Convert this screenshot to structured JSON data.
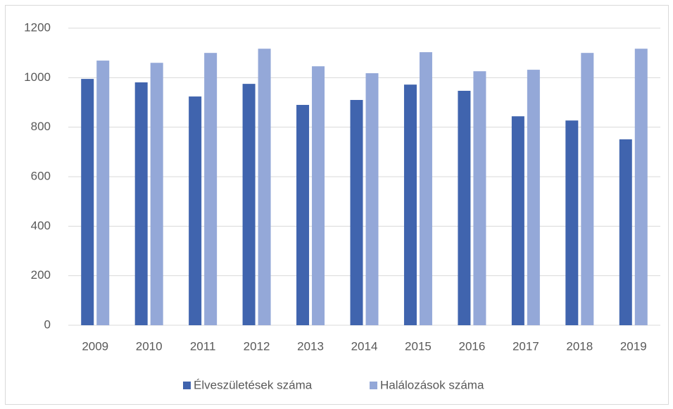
{
  "chart_data": {
    "type": "bar",
    "categories": [
      "2009",
      "2010",
      "2011",
      "2012",
      "2013",
      "2014",
      "2015",
      "2016",
      "2017",
      "2018",
      "2019"
    ],
    "series": [
      {
        "name": "Élveszületések száma",
        "color": "#4064ae",
        "values": [
          995,
          981,
          924,
          975,
          890,
          910,
          972,
          947,
          844,
          827,
          751
        ]
      },
      {
        "name": "Halálozások száma",
        "color": "#94a8d8",
        "values": [
          1069,
          1060,
          1100,
          1117,
          1046,
          1018,
          1103,
          1026,
          1032,
          1100,
          1117
        ]
      }
    ],
    "ylim": [
      0,
      1200
    ],
    "yticks": [
      0,
      200,
      400,
      600,
      800,
      1000,
      1200
    ],
    "grid": true,
    "legend": "bottom"
  }
}
